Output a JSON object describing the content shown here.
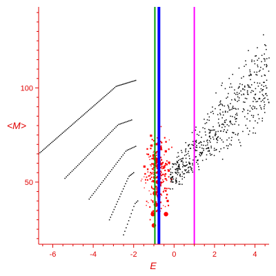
{
  "chart_data": {
    "type": "scatter",
    "title": "",
    "xlabel": "E",
    "ylabel": "<M>",
    "xlim": [
      -6.7,
      4.7
    ],
    "ylim": [
      17,
      143
    ],
    "x_ticks": [
      -6,
      -4,
      -2,
      0,
      2,
      4
    ],
    "x_tick_labels": [
      "-6",
      "-4",
      "-2",
      "0",
      "2",
      "4"
    ],
    "y_ticks": [
      50,
      100
    ],
    "y_tick_labels": [
      "50",
      "100"
    ],
    "grid": false,
    "colors": {
      "axes": "#e00000",
      "black_points": "#000000",
      "red_points": "#ff0000",
      "green_line": "#00a000",
      "blue_line": "#0000ff",
      "magenta_line": "#ff00ff"
    },
    "vertical_lines": [
      {
        "x": -0.95,
        "color": "#00a000",
        "width": 2
      },
      {
        "x": -0.75,
        "color": "#0000ff",
        "width": 4
      },
      {
        "x": 1.0,
        "color": "#ff00ff",
        "width": 2
      }
    ],
    "series": [
      {
        "color": "#000000",
        "kind": "curves",
        "curves": [
          {
            "x0": -6.7,
            "x1": -1.9,
            "y0": 65,
            "y1": 104,
            "n": 75
          },
          {
            "x0": -5.4,
            "x1": -2.1,
            "y0": 52,
            "y1": 83,
            "n": 48
          },
          {
            "x0": -4.2,
            "x1": -1.9,
            "y0": 41,
            "y1": 69,
            "n": 34
          },
          {
            "x0": -3.2,
            "x1": -2.0,
            "y0": 30,
            "y1": 55,
            "n": 22
          },
          {
            "x0": -2.5,
            "x1": -1.8,
            "y0": 22,
            "y1": 40,
            "n": 12
          }
        ]
      },
      {
        "color": "#ff0000",
        "kind": "cloud",
        "region": {
          "x": [
            -2.1,
            0.5
          ],
          "y": [
            20,
            85
          ]
        },
        "n": 260
      },
      {
        "color": "#000000",
        "kind": "cloud",
        "region": {
          "x": [
            -0.2,
            4.7
          ],
          "y": [
            33,
            143
          ]
        },
        "n": 560
      }
    ]
  }
}
